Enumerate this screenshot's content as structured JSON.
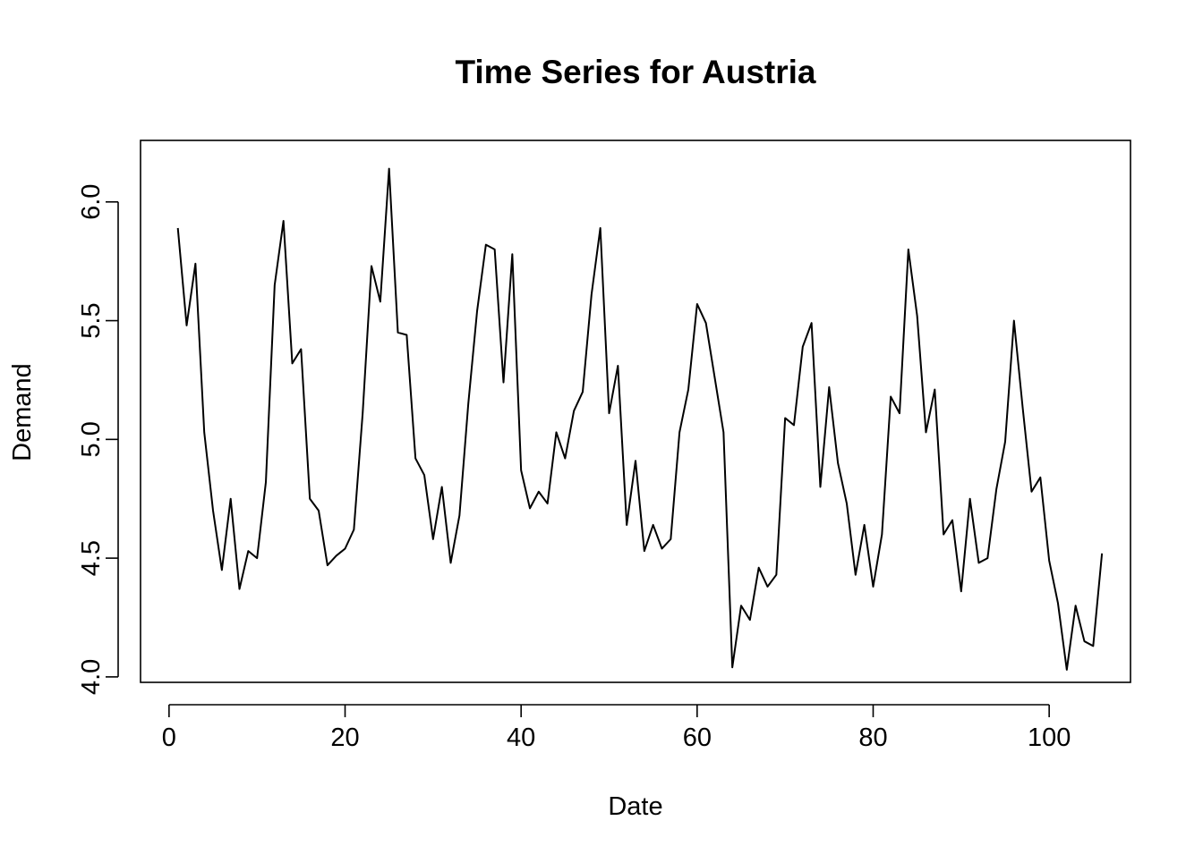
{
  "chart_data": {
    "type": "line",
    "title": "Time Series for Austria",
    "xlabel": "Date",
    "ylabel": "Demand",
    "xlim": [
      -3.24,
      109.24
    ],
    "ylim": [
      3.977,
      6.259
    ],
    "x_ticks": [
      0,
      20,
      40,
      60,
      80,
      100
    ],
    "x_tick_labels": [
      "0",
      "20",
      "40",
      "60",
      "80",
      "100"
    ],
    "y_ticks": [
      4.0,
      4.5,
      5.0,
      5.5,
      6.0
    ],
    "y_tick_labels": [
      "4.0",
      "4.5",
      "5.0",
      "5.5",
      "6.0"
    ],
    "grid": false,
    "legend": "none",
    "line_color": "#000000",
    "series": [
      {
        "x": [
          1,
          2,
          3,
          4,
          5,
          6,
          7,
          8,
          9,
          10,
          11,
          12,
          13,
          14,
          15,
          16,
          17,
          18,
          19,
          20,
          21,
          22,
          23,
          24,
          25,
          26,
          27,
          28,
          29,
          30,
          31,
          32,
          33,
          34,
          35,
          36,
          37,
          38,
          39,
          40,
          41,
          42,
          43,
          44,
          45,
          46,
          47,
          48,
          49,
          50,
          51,
          52,
          53,
          54,
          55,
          56,
          57,
          58,
          59,
          60,
          61,
          62,
          63,
          64,
          65,
          66,
          67,
          68,
          69,
          70,
          71,
          72,
          73,
          74,
          75,
          76,
          77,
          78,
          79,
          80,
          81,
          82,
          83,
          84,
          85,
          86,
          87,
          88,
          89,
          90,
          91,
          92,
          93,
          94,
          95,
          96,
          97,
          98,
          99,
          100,
          101,
          102,
          103,
          104,
          105,
          106
        ],
        "values": [
          5.89,
          5.48,
          5.74,
          5.03,
          4.7,
          4.45,
          4.75,
          4.37,
          4.53,
          4.5,
          4.82,
          5.65,
          5.92,
          5.32,
          5.38,
          4.75,
          4.7,
          4.47,
          4.51,
          4.54,
          4.62,
          5.11,
          5.73,
          5.58,
          6.14,
          5.45,
          5.44,
          4.92,
          4.85,
          4.58,
          4.8,
          4.48,
          4.68,
          5.15,
          5.54,
          5.82,
          5.8,
          5.24,
          5.78,
          4.87,
          4.71,
          4.78,
          4.73,
          5.03,
          4.92,
          5.12,
          5.2,
          5.61,
          5.89,
          5.11,
          5.31,
          4.64,
          4.91,
          4.53,
          4.64,
          4.54,
          4.58,
          5.03,
          5.21,
          5.57,
          5.49,
          5.26,
          5.03,
          4.04,
          4.3,
          4.24,
          4.46,
          4.38,
          4.43,
          5.09,
          5.06,
          5.39,
          5.49,
          4.8,
          5.22,
          4.9,
          4.73,
          4.43,
          4.64,
          4.38,
          4.6,
          5.18,
          5.11,
          5.8,
          5.52,
          5.03,
          5.21,
          4.6,
          4.66,
          4.36,
          4.75,
          4.48,
          4.5,
          4.79,
          4.99,
          5.5,
          5.13,
          4.78,
          4.84,
          4.49,
          4.31,
          4.03,
          4.3,
          4.15,
          4.13,
          4.52
        ]
      }
    ]
  }
}
